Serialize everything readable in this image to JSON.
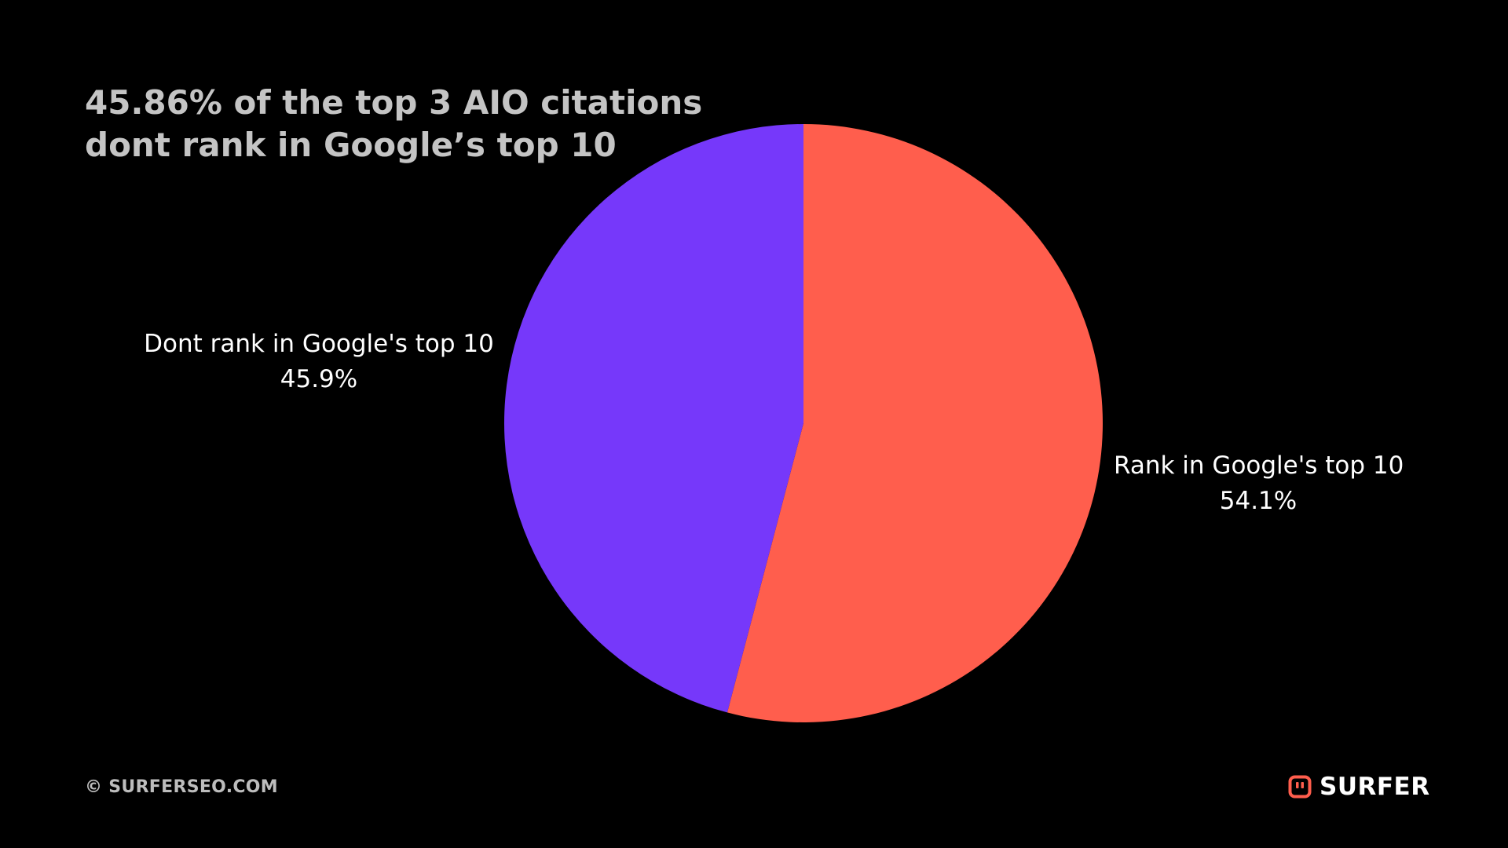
{
  "title": {
    "line1": "45.86% of the top 3 AIO citations",
    "line2": "dont rank in Google’s top 10"
  },
  "chart_data": {
    "type": "pie",
    "title": "45.86% of the top 3 AIO citations dont rank in Google’s top 10",
    "slices": [
      {
        "label": "Rank in Google's top 10",
        "value": 54.1,
        "value_label": "54.1%",
        "color": "#ff5e4d"
      },
      {
        "label": "Dont rank in Google's top 10",
        "value": 45.9,
        "value_label": "45.9%",
        "color": "#7638fa"
      }
    ],
    "start": "top, clockwise",
    "legend": "none, labels beside slices"
  },
  "footer": {
    "copyright": "© SURFERSEO.COM",
    "brand": "SURFER",
    "brand_icon": "surfer-logo-icon",
    "brand_color": "#ff5e4d"
  }
}
